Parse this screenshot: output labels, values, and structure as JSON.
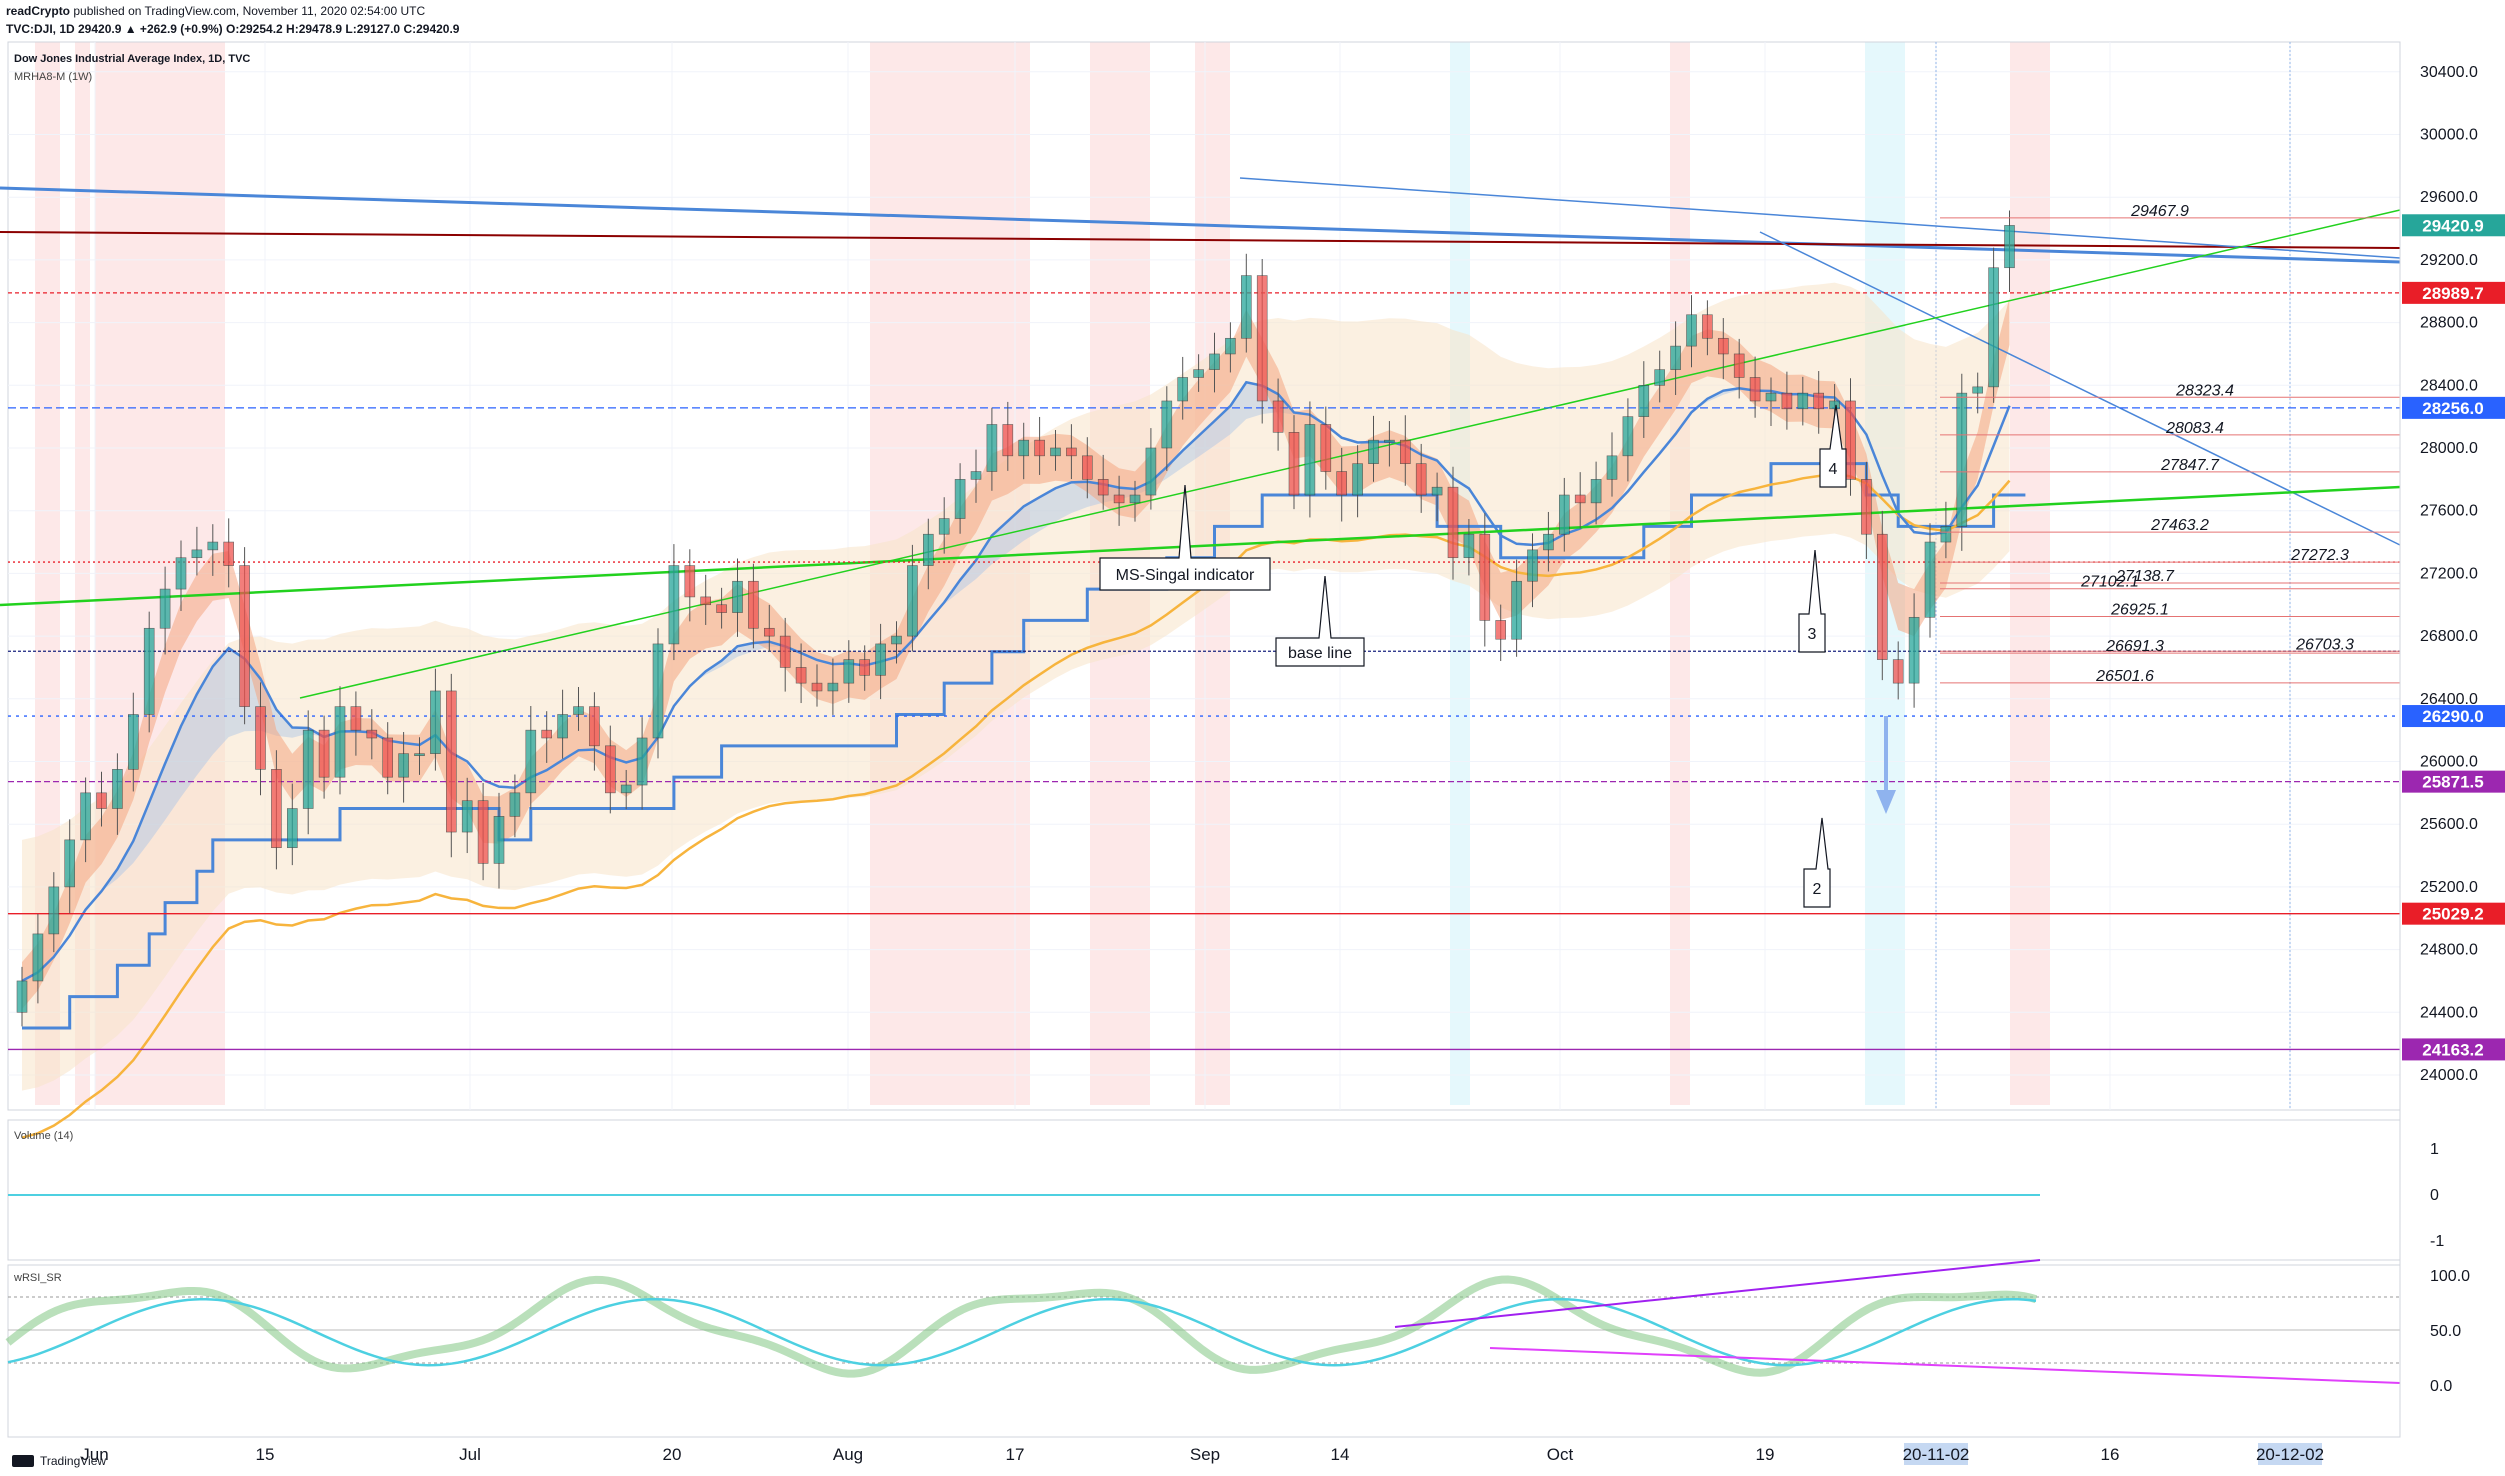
{
  "header": {
    "publisher": "readCrypto",
    "published_text": "published on TradingView.com, November 11, 2020 02:54:00 UTC",
    "ticker_line": "TVC:DJI, 1D 29420.9 ▲ +262.9 (+0.9%) O:29254.2 H:29478.9 L:29127.0 C:29420.9"
  },
  "legend": {
    "symbol": "Dow Jones Industrial Average Index, 1D, TVC",
    "indicator": "MRHA8-M (1W)"
  },
  "footer": {
    "brand": "TradingView"
  },
  "colors": {
    "up": "#26a69a",
    "down": "#ef5350",
    "ms_signal": "#4a86d8",
    "baseline": "#f7b43d",
    "green_line": "#22d11e",
    "red_price": "#e91e28",
    "purple": "#9c27b0",
    "dark_red": "#8b0000"
  },
  "chart_data": [
    {
      "type": "candlestick",
      "title": "Dow Jones Industrial Average Index, 1D, TVC",
      "y_ticks": [
        24000.0,
        24400.0,
        24800.0,
        25200.0,
        25600.0,
        26000.0,
        26400.0,
        26800.0,
        27200.0,
        27600.0,
        28000.0,
        28400.0,
        28800.0,
        29200.0,
        29600.0,
        30000.0,
        30400.0
      ],
      "ylim": [
        23700,
        30700
      ],
      "x_ticks": [
        "Jun",
        "15",
        "Jul",
        "20",
        "Aug",
        "17",
        "Sep",
        "14",
        "Oct",
        "19",
        "20-11-02",
        "16",
        "20-12-02"
      ],
      "ohlc_closes": [
        24600,
        24900,
        25200,
        25500,
        25800,
        25700,
        25950,
        26300,
        26850,
        27100,
        27300,
        27350,
        27400,
        27250,
        26350,
        25950,
        25450,
        25700,
        26200,
        25900,
        26350,
        26200,
        26150,
        25900,
        26050,
        26050,
        26450,
        25550,
        25750,
        25350,
        25650,
        25800,
        26200,
        26150,
        26300,
        26350,
        26100,
        25800,
        25850,
        26150,
        26750,
        27250,
        27050,
        27000,
        26950,
        27150,
        26850,
        26800,
        26600,
        26500,
        26450,
        26500,
        26650,
        26550,
        26750,
        26800,
        27250,
        27450,
        27550,
        27800,
        27850,
        28150,
        27950,
        28050,
        27950,
        28000,
        27950,
        27800,
        27700,
        27650,
        27700,
        28000,
        28300,
        28450,
        28500,
        28600,
        28700,
        29100,
        28300,
        28100,
        27700,
        28150,
        27850,
        27700,
        27900,
        28050,
        28050,
        27900,
        27700,
        27750,
        27300,
        27450,
        26900,
        26780,
        27150,
        27350,
        27450,
        27700,
        27650,
        27800,
        27950,
        28200,
        28400,
        28500,
        28650,
        28850,
        28700,
        28600,
        28450,
        28300,
        28350,
        28250,
        28350,
        28250,
        28300,
        27800,
        27450,
        26650,
        26500,
        26920,
        27400,
        27500,
        28350,
        28390,
        29150,
        29420
      ],
      "price_labels": [
        {
          "value": 29420.9,
          "text": "29420.9",
          "color": "#26a69a"
        },
        {
          "value": 28989.7,
          "text": "28989.7",
          "color": "#e91e28"
        },
        {
          "value": 28256.0,
          "text": "28256.0",
          "color": "#2962ff"
        },
        {
          "value": 26290.0,
          "text": "26290.0",
          "color": "#2962ff"
        },
        {
          "value": 25871.5,
          "text": "25871.5",
          "color": "#9c27b0"
        },
        {
          "value": 25029.2,
          "text": "25029.2",
          "color": "#e91e28"
        },
        {
          "value": 24163.2,
          "text": "24163.2",
          "color": "#9c27b0"
        }
      ],
      "horizontal_levels": [
        {
          "value": 29467.9,
          "text": "29467.9"
        },
        {
          "value": 28323.4,
          "text": "28323.4"
        },
        {
          "value": 28083.4,
          "text": "28083.4"
        },
        {
          "value": 27847.7,
          "text": "27847.7"
        },
        {
          "value": 27463.2,
          "text": "27463.2"
        },
        {
          "value": 27272.3,
          "text": "27272.3"
        },
        {
          "value": 27138.7,
          "text": "27138.7"
        },
        {
          "value": 27102.1,
          "text": "27102.1"
        },
        {
          "value": 26925.1,
          "text": "26925.1"
        },
        {
          "value": 26703.3,
          "text": "26703.3"
        },
        {
          "value": 26691.3,
          "text": "26691.3"
        },
        {
          "value": 26501.6,
          "text": "26501.6"
        }
      ],
      "annotations": [
        "MS-Singal indicator",
        "base line",
        "2",
        "3",
        "4"
      ]
    },
    {
      "type": "line",
      "title": "Volume (14)",
      "y_ticks": [
        1,
        0,
        -1
      ]
    },
    {
      "type": "line",
      "title": "wRSI_SR",
      "y_ticks": [
        "100.0",
        "50.0",
        "0.0"
      ]
    }
  ]
}
